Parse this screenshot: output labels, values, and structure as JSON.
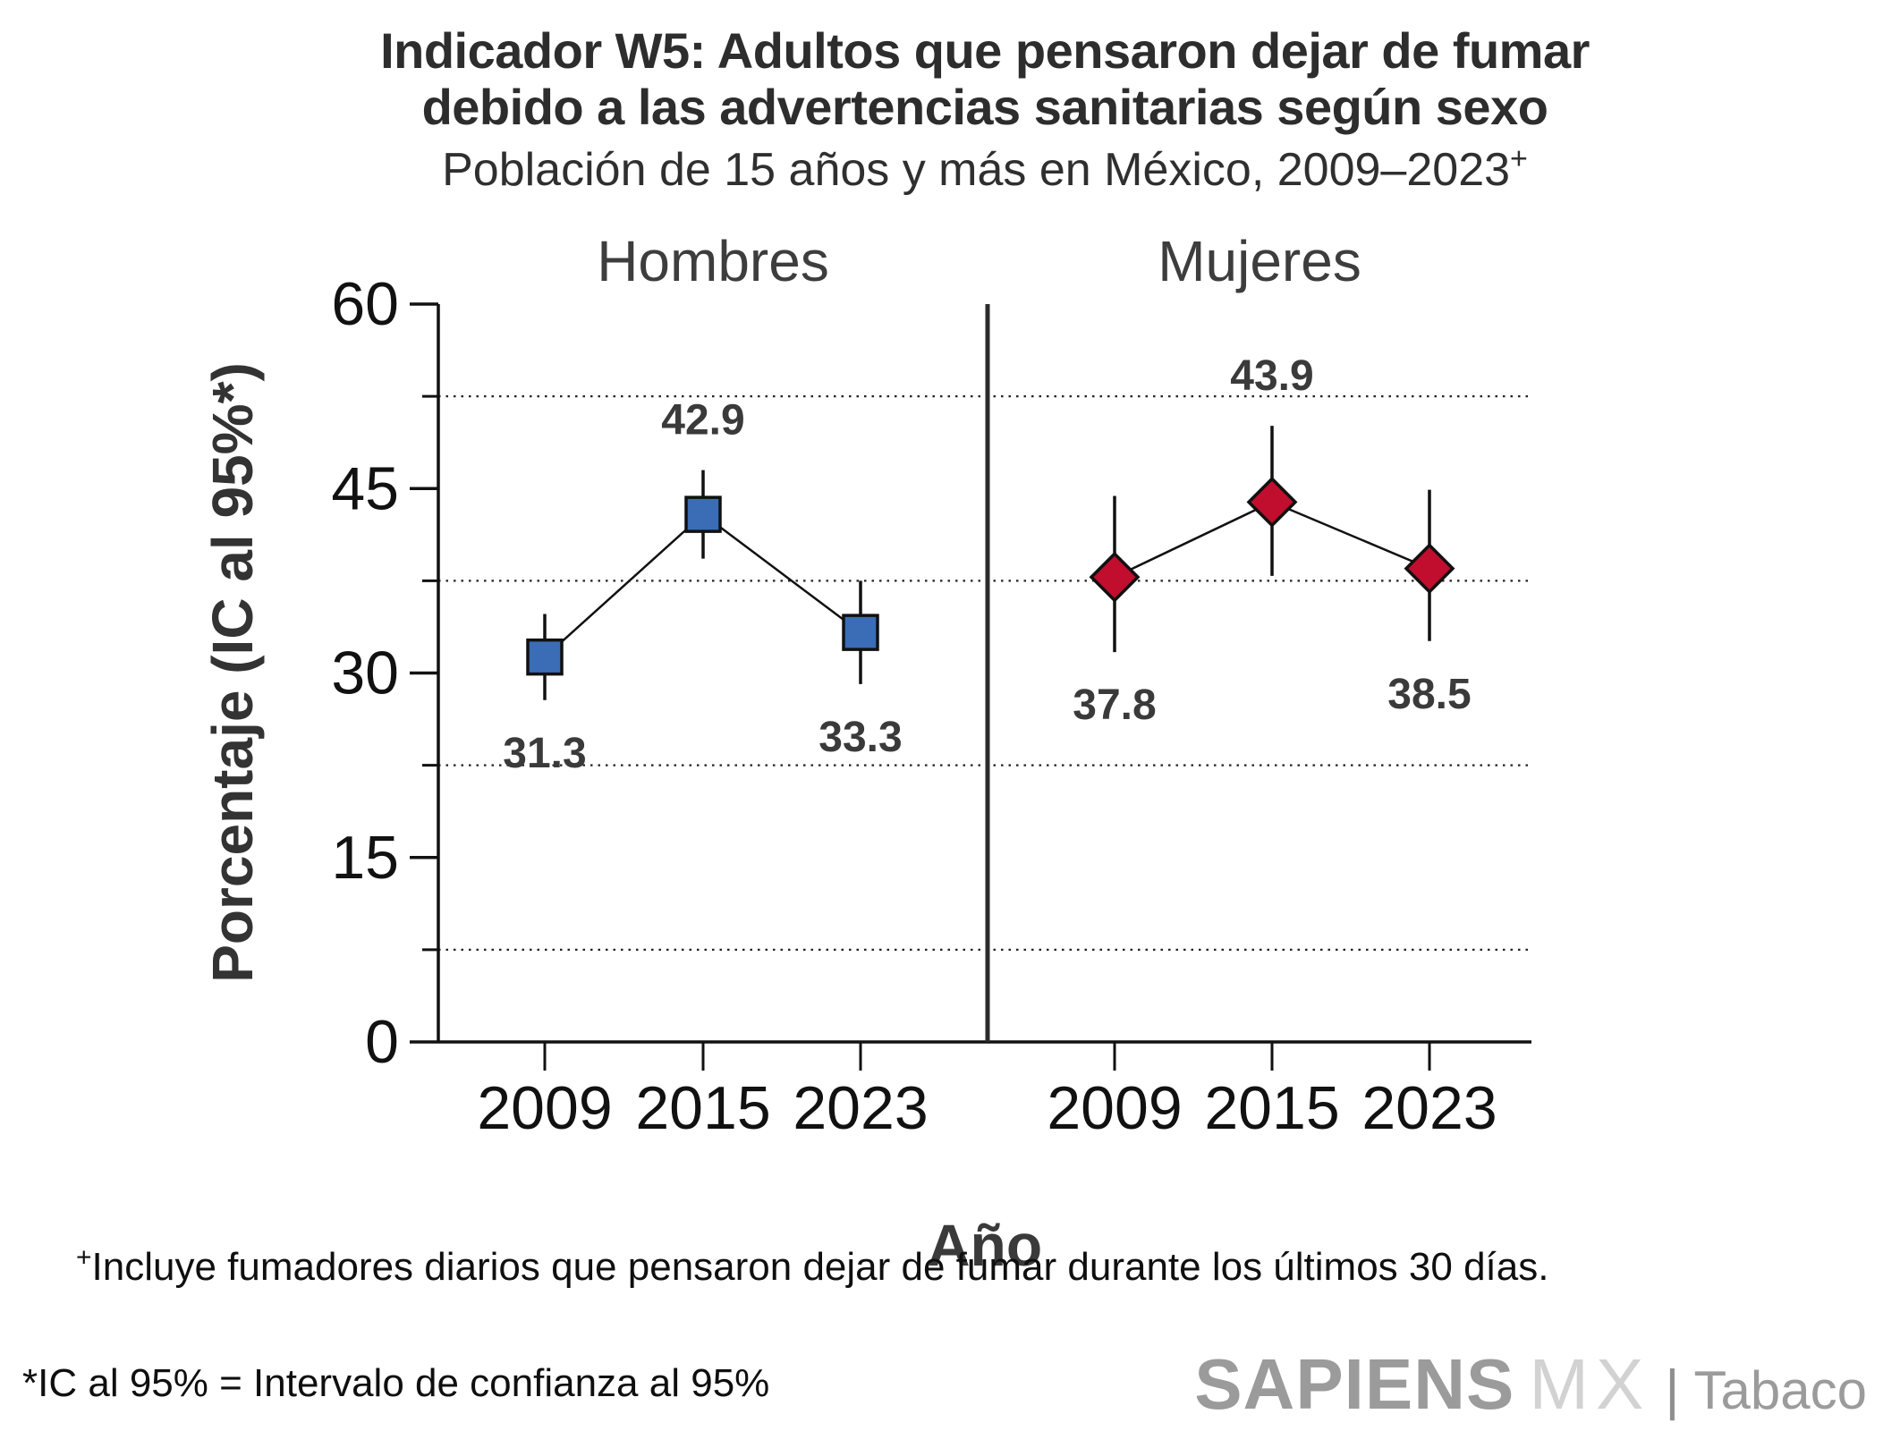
{
  "title": {
    "line1": "Indicador W5: Adultos que pensaron dejar de fumar",
    "line2": "debido a las advertencias sanitarias según sexo"
  },
  "subtitle": {
    "text": "Población de 15 años y más en México, 2009–2023",
    "superscript": "+"
  },
  "chart_data": {
    "type": "line",
    "title": "Indicador W5: Adultos que pensaron dejar de fumar debido a las advertencias sanitarias según sexo",
    "subtitle": "Población de 15 años y más en México, 2009–2023+",
    "xlabel": "Año",
    "ylabel": "Porcentaje (IC al 95%*)",
    "ylim": [
      0,
      60
    ],
    "yticks": [
      0,
      15,
      30,
      45,
      60
    ],
    "minor_gridlines": [
      7.5,
      22.5,
      37.5,
      52.5
    ],
    "grid": "horizontal dotted lines at 7.5, 22.5, 37.5 and 52.5 only",
    "legend_position": "none (panel titles above each facet)",
    "categories": [
      "2009",
      "2015",
      "2023"
    ],
    "panels": [
      {
        "label": "Hombres",
        "marker": "square",
        "color": "#3A6DB5",
        "values": [
          31.3,
          42.9,
          33.3
        ],
        "ci95": [
          [
            27.8,
            34.8
          ],
          [
            39.3,
            46.5
          ],
          [
            29.1,
            37.5
          ]
        ]
      },
      {
        "label": "Mujeres",
        "marker": "diamond",
        "color": "#C10D2E",
        "values": [
          37.8,
          43.9,
          38.5
        ],
        "ci95": [
          [
            31.7,
            44.4
          ],
          [
            37.9,
            50.1
          ],
          [
            32.6,
            44.9
          ]
        ]
      }
    ],
    "marker_outline": "#111111",
    "error_bars": "95% confidence intervals, vertical black lines"
  },
  "footnotes": {
    "note1_sup": "+",
    "note1": "Incluye fumadores diarios que pensaron dejar de fumar durante los últimos 30 días.",
    "note2": "*IC al 95% = Intervalo de confianza al 95%"
  },
  "logo": {
    "brand": "SAPIENS",
    "brand2": "MX",
    "divider": "|",
    "suffix": "Tabaco"
  }
}
